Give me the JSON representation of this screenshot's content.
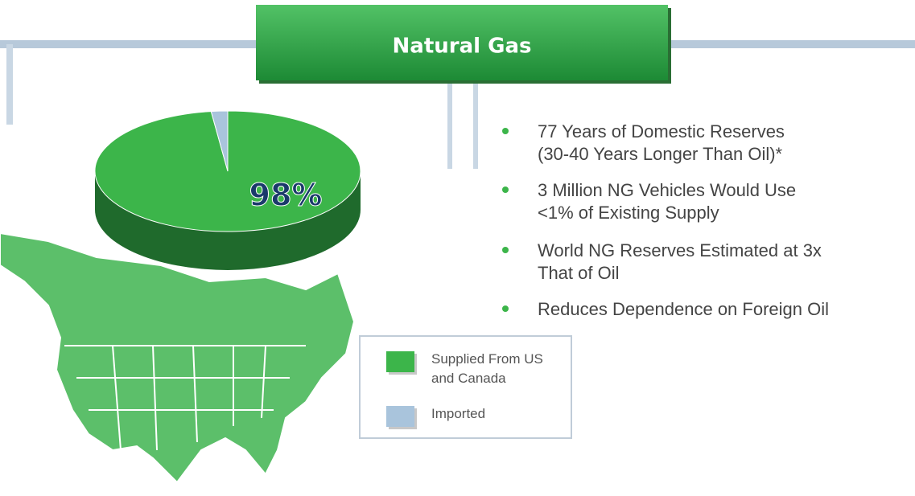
{
  "chart_data": {
    "type": "pie",
    "title": "Natural Gas",
    "categories": [
      "Supplied From US and Canada",
      "Imported"
    ],
    "values": [
      98,
      2
    ],
    "value_labels": [
      "98%",
      null
    ],
    "colors": [
      "#3cb54a",
      "#a9c4dc"
    ]
  },
  "bullets": [
    [
      "77 Years of Domestic Reserves",
      "(30-40 Years Longer Than Oil)*"
    ],
    [
      "3 Million NG Vehicles Would Use",
      "<1% of Existing Supply"
    ],
    [
      "World NG Reserves Estimated at 3x",
      "That of Oil"
    ],
    [
      "Reduces Dependence on Foreign Oil"
    ]
  ]
}
